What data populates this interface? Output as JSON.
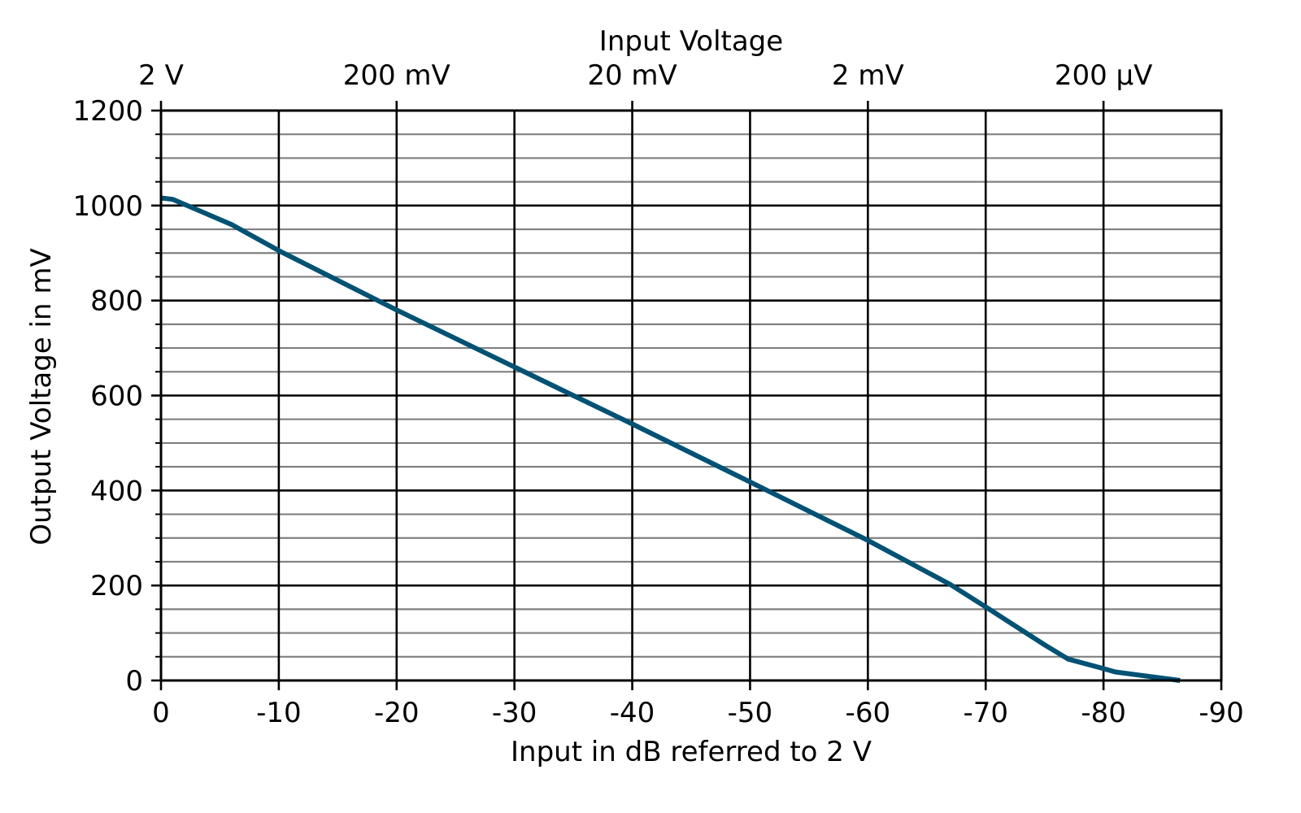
{
  "chart_data": {
    "type": "line",
    "title": "",
    "xlabel": "Input in dB referred to 2 V",
    "ylabel": "Output Voltage in mV",
    "secondary_xlabel": "Input Voltage",
    "xlim": [
      0,
      -90
    ],
    "ylim": [
      0,
      1200
    ],
    "grid": true,
    "legend": null,
    "x_ticks": [
      "0",
      "-10",
      "-20",
      "-30",
      "-40",
      "-50",
      "-60",
      "-70",
      "-80",
      "-90"
    ],
    "x_tick_values": [
      0,
      -10,
      -20,
      -30,
      -40,
      -50,
      -60,
      -70,
      -80,
      -90
    ],
    "y_ticks": [
      "0",
      "200",
      "400",
      "600",
      "800",
      "1000",
      "1200"
    ],
    "y_tick_values": [
      0,
      200,
      400,
      600,
      800,
      1000,
      1200
    ],
    "y_minor_step": 50,
    "top_x_ticks": [
      "2 V",
      "200 mV",
      "20 mV",
      "2 mV",
      "200 µV"
    ],
    "top_x_tick_values": [
      0,
      -20,
      -40,
      -60,
      -80
    ],
    "series": [
      {
        "name": "Output Voltage",
        "color": "#005274",
        "x": [
          0,
          -1,
          -6,
          -10,
          -20,
          -30,
          -35,
          -40,
          -50,
          -60,
          -67,
          -70,
          -75,
          -77,
          -80,
          -81,
          -86.5
        ],
        "y": [
          1016,
          1013,
          960,
          905,
          780,
          660,
          600,
          540,
          418,
          295,
          202,
          155,
          75,
          45,
          25,
          18,
          0
        ]
      }
    ]
  },
  "labels": {
    "xlabel": "Input in dB referred to 2 V",
    "ylabel": "Output Voltage in mV",
    "top_title": "Input Voltage"
  }
}
